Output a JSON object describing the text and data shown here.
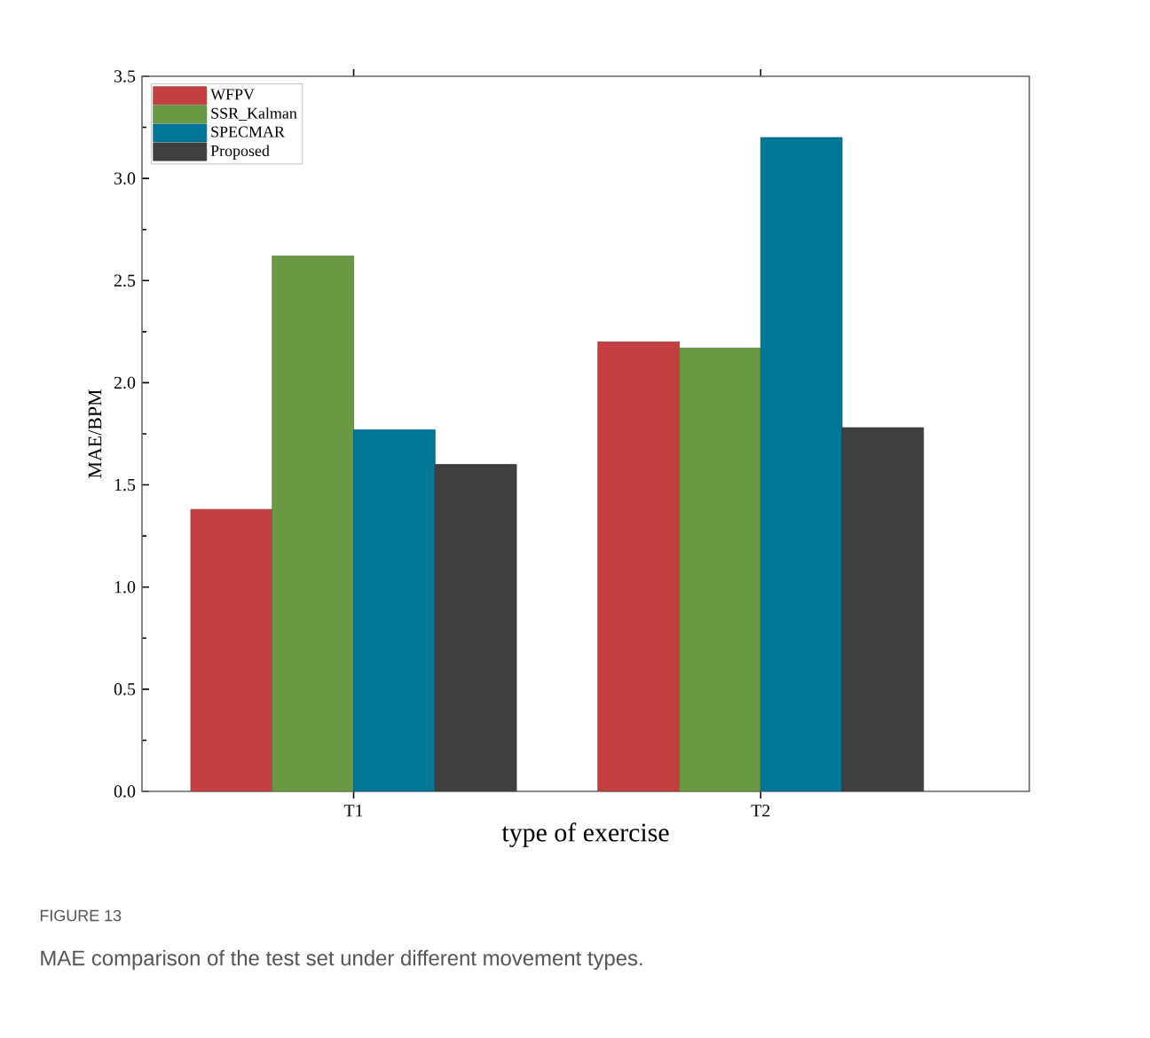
{
  "chart_data": {
    "type": "bar",
    "xlabel": "type of exercise",
    "ylabel": "MAE/BPM",
    "categories": [
      "T1",
      "T2"
    ],
    "series": [
      {
        "name": "WFPV",
        "color": "#c44040",
        "values": [
          1.38,
          2.2
        ]
      },
      {
        "name": "SSR_Kalman",
        "color": "#6a9944",
        "values": [
          2.62,
          2.17
        ]
      },
      {
        "name": "SPECMAR",
        "color": "#017697",
        "values": [
          1.77,
          3.2
        ]
      },
      {
        "name": "Proposed",
        "color": "#404040",
        "values": [
          1.6,
          1.78
        ]
      }
    ],
    "ylim": [
      0,
      3.5
    ],
    "yticks": [
      {
        "value": 0,
        "label": "0.0"
      },
      {
        "value": 0.5,
        "label": "0.5"
      },
      {
        "value": 1,
        "label": "1.0"
      },
      {
        "value": 1.5,
        "label": "1.5"
      },
      {
        "value": 2,
        "label": "2.0"
      },
      {
        "value": 2.5,
        "label": "2.5"
      },
      {
        "value": 3,
        "label": "3.0"
      },
      {
        "value": 3.5,
        "label": "3.5"
      }
    ],
    "legend": "top left",
    "grid": false,
    "annotations": [
      "FIGURE 13",
      "MAE comparison of the test set under different movement types."
    ]
  }
}
